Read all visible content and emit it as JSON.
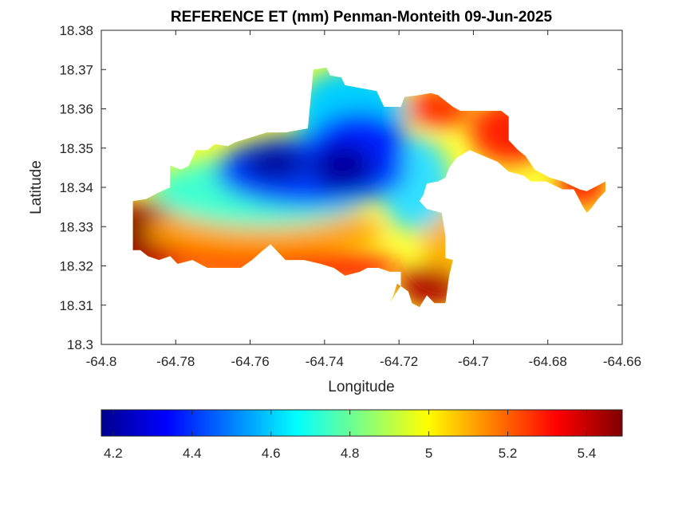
{
  "chart_data": {
    "type": "heatmap",
    "title": "REFERENCE ET (mm) Penman-Monteith 09-Jun-2025",
    "xlabel": "Longitude",
    "ylabel": "Latitude",
    "xlim": [
      -64.8,
      -64.66
    ],
    "ylim": [
      18.3,
      18.38
    ],
    "x_ticks": [
      -64.8,
      -64.78,
      -64.76,
      -64.74,
      -64.72,
      -64.7,
      -64.68,
      -64.66
    ],
    "x_tick_labels": [
      "-64.8",
      "-64.78",
      "-64.76",
      "-64.74",
      "-64.72",
      "-64.7",
      "-64.68",
      "-64.66"
    ],
    "y_ticks": [
      18.3,
      18.31,
      18.32,
      18.33,
      18.34,
      18.35,
      18.36,
      18.37,
      18.38
    ],
    "y_tick_labels": [
      "18.3",
      "18.31",
      "18.32",
      "18.33",
      "18.34",
      "18.35",
      "18.36",
      "18.37",
      "18.38"
    ],
    "colormap": "jet",
    "colorbar": {
      "placement": "bottom",
      "range": [
        4.17,
        5.49
      ],
      "ticks": [
        4.2,
        4.4,
        4.6,
        4.8,
        5.0,
        5.2,
        5.4
      ],
      "tick_labels": [
        "4.2",
        "4.4",
        "4.6",
        "4.8",
        "5",
        "5.2",
        "5.4"
      ]
    },
    "grid": false,
    "regions": [
      {
        "outline_lonlat": [
          [
            -64.7915,
            18.3365
          ],
          [
            -64.788,
            18.337
          ],
          [
            -64.785,
            18.3385
          ],
          [
            -64.7815,
            18.34
          ],
          [
            -64.7815,
            18.3455
          ],
          [
            -64.7785,
            18.3445
          ],
          [
            -64.7765,
            18.3455
          ],
          [
            -64.7745,
            18.3495
          ],
          [
            -64.7715,
            18.3495
          ],
          [
            -64.7695,
            18.351
          ],
          [
            -64.766,
            18.3505
          ],
          [
            -64.764,
            18.3515
          ],
          [
            -64.7555,
            18.354
          ],
          [
            -64.7505,
            18.354
          ],
          [
            -64.7445,
            18.355
          ],
          [
            -64.743,
            18.37
          ],
          [
            -64.7395,
            18.3705
          ],
          [
            -64.7385,
            18.3685
          ],
          [
            -64.7355,
            18.368
          ],
          [
            -64.7345,
            18.366
          ],
          [
            -64.726,
            18.3645
          ],
          [
            -64.724,
            18.3605
          ],
          [
            -64.7195,
            18.3605
          ],
          [
            -64.7185,
            18.363
          ],
          [
            -64.7145,
            18.3635
          ],
          [
            -64.7115,
            18.364
          ],
          [
            -64.7095,
            18.3635
          ],
          [
            -64.7055,
            18.3605
          ],
          [
            -64.7035,
            18.3595
          ],
          [
            -64.7,
            18.3595
          ],
          [
            -64.6925,
            18.3595
          ],
          [
            -64.6905,
            18.358
          ],
          [
            -64.6905,
            18.352
          ],
          [
            -64.688,
            18.3495
          ],
          [
            -64.686,
            18.348
          ],
          [
            -64.6835,
            18.3445
          ],
          [
            -64.6795,
            18.3425
          ],
          [
            -64.676,
            18.3415
          ],
          [
            -64.6715,
            18.3395
          ],
          [
            -64.6695,
            18.339
          ],
          [
            -64.6645,
            18.3415
          ],
          [
            -64.6645,
            18.339
          ],
          [
            -64.6665,
            18.337
          ],
          [
            -64.6685,
            18.3345
          ],
          [
            -64.6695,
            18.3335
          ],
          [
            -64.6705,
            18.335
          ],
          [
            -64.673,
            18.3395
          ],
          [
            -64.676,
            18.3395
          ],
          [
            -64.6805,
            18.3415
          ],
          [
            -64.6845,
            18.3415
          ],
          [
            -64.6865,
            18.343
          ],
          [
            -64.6905,
            18.344
          ],
          [
            -64.6935,
            18.3465
          ],
          [
            -64.6985,
            18.3485
          ],
          [
            -64.701,
            18.3495
          ],
          [
            -64.7045,
            18.3475
          ],
          [
            -64.7065,
            18.345
          ],
          [
            -64.7075,
            18.3425
          ],
          [
            -64.7095,
            18.3415
          ],
          [
            -64.7125,
            18.341
          ],
          [
            -64.7135,
            18.338
          ],
          [
            -64.7145,
            18.3365
          ],
          [
            -64.7125,
            18.3345
          ],
          [
            -64.7085,
            18.3335
          ],
          [
            -64.7075,
            18.3275
          ],
          [
            -64.7075,
            18.322
          ],
          [
            -64.7055,
            18.3215
          ],
          [
            -64.7065,
            18.3175
          ],
          [
            -64.7075,
            18.3105
          ],
          [
            -64.7105,
            18.3105
          ],
          [
            -64.7125,
            18.3125
          ],
          [
            -64.7145,
            18.3095
          ],
          [
            -64.7165,
            18.3105
          ],
          [
            -64.7175,
            18.3135
          ],
          [
            -64.7205,
            18.3155
          ],
          [
            -64.7215,
            18.3125
          ],
          [
            -64.7225,
            18.3105
          ],
          [
            -64.7195,
            18.315
          ],
          [
            -64.7195,
            18.3185
          ],
          [
            -64.7225,
            18.3185
          ],
          [
            -64.7255,
            18.3195
          ],
          [
            -64.7285,
            18.3195
          ],
          [
            -64.7305,
            18.3185
          ],
          [
            -64.7345,
            18.3175
          ],
          [
            -64.7375,
            18.3195
          ],
          [
            -64.741,
            18.3205
          ],
          [
            -64.7455,
            18.3215
          ],
          [
            -64.7505,
            18.3215
          ],
          [
            -64.7535,
            18.3245
          ],
          [
            -64.7545,
            18.3255
          ],
          [
            -64.7565,
            18.324
          ],
          [
            -64.7595,
            18.3215
          ],
          [
            -64.7625,
            18.3195
          ],
          [
            -64.7655,
            18.3195
          ],
          [
            -64.7685,
            18.3195
          ],
          [
            -64.7715,
            18.3195
          ],
          [
            -64.7755,
            18.3215
          ],
          [
            -64.7795,
            18.3205
          ],
          [
            -64.7815,
            18.3225
          ],
          [
            -64.7845,
            18.3215
          ],
          [
            -64.7875,
            18.3225
          ],
          [
            -64.7895,
            18.324
          ],
          [
            -64.7915,
            18.324
          ]
        ]
      }
    ]
  }
}
